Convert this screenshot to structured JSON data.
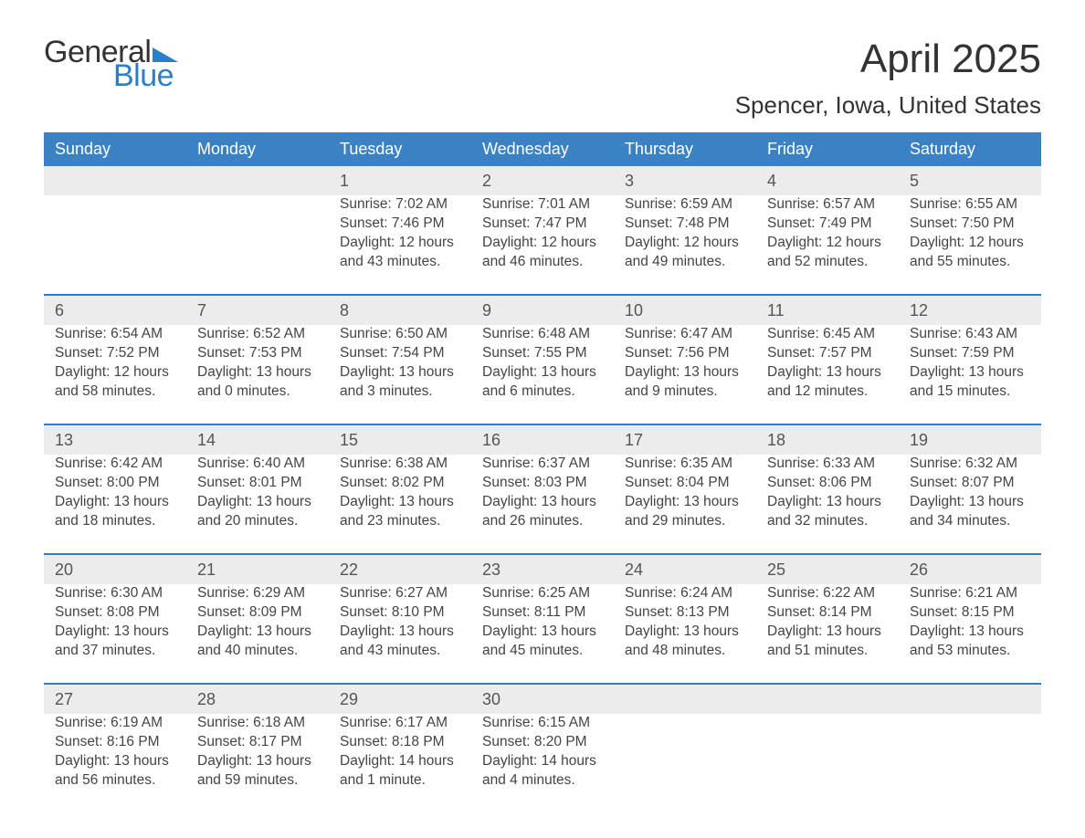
{
  "logo": {
    "text1": "General",
    "text2": "Blue",
    "accent_color": "#2a7fc9"
  },
  "title": "April 2025",
  "location": "Spencer, Iowa, United States",
  "colors": {
    "header_bg": "#3b82c4",
    "header_text": "#ffffff",
    "daynum_bg": "#ececec",
    "daynum_border": "#2a7fc9",
    "body_text": "#444444",
    "bg": "#ffffff"
  },
  "typography": {
    "title_fontsize": 44,
    "location_fontsize": 26,
    "header_fontsize": 18,
    "daynum_fontsize": 18,
    "cell_fontsize": 15.5
  },
  "calendar": {
    "days_of_week": [
      "Sunday",
      "Monday",
      "Tuesday",
      "Wednesday",
      "Thursday",
      "Friday",
      "Saturday"
    ],
    "weeks": [
      [
        null,
        null,
        {
          "n": "1",
          "sunrise": "7:02 AM",
          "sunset": "7:46 PM",
          "daylight": "12 hours and 43 minutes."
        },
        {
          "n": "2",
          "sunrise": "7:01 AM",
          "sunset": "7:47 PM",
          "daylight": "12 hours and 46 minutes."
        },
        {
          "n": "3",
          "sunrise": "6:59 AM",
          "sunset": "7:48 PM",
          "daylight": "12 hours and 49 minutes."
        },
        {
          "n": "4",
          "sunrise": "6:57 AM",
          "sunset": "7:49 PM",
          "daylight": "12 hours and 52 minutes."
        },
        {
          "n": "5",
          "sunrise": "6:55 AM",
          "sunset": "7:50 PM",
          "daylight": "12 hours and 55 minutes."
        }
      ],
      [
        {
          "n": "6",
          "sunrise": "6:54 AM",
          "sunset": "7:52 PM",
          "daylight": "12 hours and 58 minutes."
        },
        {
          "n": "7",
          "sunrise": "6:52 AM",
          "sunset": "7:53 PM",
          "daylight": "13 hours and 0 minutes."
        },
        {
          "n": "8",
          "sunrise": "6:50 AM",
          "sunset": "7:54 PM",
          "daylight": "13 hours and 3 minutes."
        },
        {
          "n": "9",
          "sunrise": "6:48 AM",
          "sunset": "7:55 PM",
          "daylight": "13 hours and 6 minutes."
        },
        {
          "n": "10",
          "sunrise": "6:47 AM",
          "sunset": "7:56 PM",
          "daylight": "13 hours and 9 minutes."
        },
        {
          "n": "11",
          "sunrise": "6:45 AM",
          "sunset": "7:57 PM",
          "daylight": "13 hours and 12 minutes."
        },
        {
          "n": "12",
          "sunrise": "6:43 AM",
          "sunset": "7:59 PM",
          "daylight": "13 hours and 15 minutes."
        }
      ],
      [
        {
          "n": "13",
          "sunrise": "6:42 AM",
          "sunset": "8:00 PM",
          "daylight": "13 hours and 18 minutes."
        },
        {
          "n": "14",
          "sunrise": "6:40 AM",
          "sunset": "8:01 PM",
          "daylight": "13 hours and 20 minutes."
        },
        {
          "n": "15",
          "sunrise": "6:38 AM",
          "sunset": "8:02 PM",
          "daylight": "13 hours and 23 minutes."
        },
        {
          "n": "16",
          "sunrise": "6:37 AM",
          "sunset": "8:03 PM",
          "daylight": "13 hours and 26 minutes."
        },
        {
          "n": "17",
          "sunrise": "6:35 AM",
          "sunset": "8:04 PM",
          "daylight": "13 hours and 29 minutes."
        },
        {
          "n": "18",
          "sunrise": "6:33 AM",
          "sunset": "8:06 PM",
          "daylight": "13 hours and 32 minutes."
        },
        {
          "n": "19",
          "sunrise": "6:32 AM",
          "sunset": "8:07 PM",
          "daylight": "13 hours and 34 minutes."
        }
      ],
      [
        {
          "n": "20",
          "sunrise": "6:30 AM",
          "sunset": "8:08 PM",
          "daylight": "13 hours and 37 minutes."
        },
        {
          "n": "21",
          "sunrise": "6:29 AM",
          "sunset": "8:09 PM",
          "daylight": "13 hours and 40 minutes."
        },
        {
          "n": "22",
          "sunrise": "6:27 AM",
          "sunset": "8:10 PM",
          "daylight": "13 hours and 43 minutes."
        },
        {
          "n": "23",
          "sunrise": "6:25 AM",
          "sunset": "8:11 PM",
          "daylight": "13 hours and 45 minutes."
        },
        {
          "n": "24",
          "sunrise": "6:24 AM",
          "sunset": "8:13 PM",
          "daylight": "13 hours and 48 minutes."
        },
        {
          "n": "25",
          "sunrise": "6:22 AM",
          "sunset": "8:14 PM",
          "daylight": "13 hours and 51 minutes."
        },
        {
          "n": "26",
          "sunrise": "6:21 AM",
          "sunset": "8:15 PM",
          "daylight": "13 hours and 53 minutes."
        }
      ],
      [
        {
          "n": "27",
          "sunrise": "6:19 AM",
          "sunset": "8:16 PM",
          "daylight": "13 hours and 56 minutes."
        },
        {
          "n": "28",
          "sunrise": "6:18 AM",
          "sunset": "8:17 PM",
          "daylight": "13 hours and 59 minutes."
        },
        {
          "n": "29",
          "sunrise": "6:17 AM",
          "sunset": "8:18 PM",
          "daylight": "14 hours and 1 minute."
        },
        {
          "n": "30",
          "sunrise": "6:15 AM",
          "sunset": "8:20 PM",
          "daylight": "14 hours and 4 minutes."
        },
        null,
        null,
        null
      ]
    ],
    "labels": {
      "sunrise": "Sunrise:",
      "sunset": "Sunset:",
      "daylight": "Daylight:"
    }
  }
}
